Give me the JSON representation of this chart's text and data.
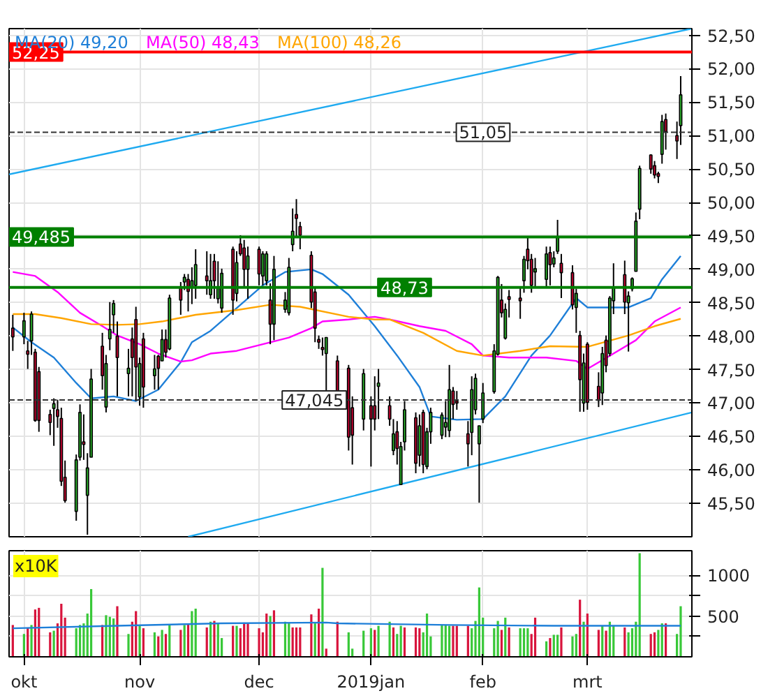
{
  "chart_data": [
    {
      "type": "candlestick",
      "x": [
        "2018-09-28",
        "2018-10-01",
        "2018-10-02",
        "2018-10-03",
        "2018-10-04",
        "2018-10-05",
        "2018-10-08",
        "2018-10-09",
        "2018-10-10",
        "2018-10-11",
        "2018-10-12",
        "2018-10-15",
        "2018-10-16",
        "2018-10-17",
        "2018-10-18",
        "2018-10-19",
        "2018-10-22",
        "2018-10-23",
        "2018-10-24",
        "2018-10-25",
        "2018-10-26",
        "2018-10-29",
        "2018-10-30",
        "2018-10-31",
        "2018-11-01",
        "2018-11-02",
        "2018-11-05",
        "2018-11-06",
        "2018-11-07",
        "2018-11-08",
        "2018-11-09",
        "2018-11-12",
        "2018-11-13",
        "2018-11-14",
        "2018-11-15",
        "2018-11-16",
        "2018-11-19",
        "2018-11-20",
        "2018-11-21",
        "2018-11-22",
        "2018-11-23",
        "2018-11-26",
        "2018-11-27",
        "2018-11-28",
        "2018-11-29",
        "2018-11-30",
        "2018-12-03",
        "2018-12-04",
        "2018-12-05",
        "2018-12-06",
        "2018-12-07",
        "2018-12-10",
        "2018-12-11",
        "2018-12-12",
        "2018-12-13",
        "2018-12-14",
        "2018-12-17",
        "2018-12-18",
        "2018-12-19",
        "2018-12-20",
        "2018-12-21",
        "2018-12-24",
        "2018-12-27",
        "2018-12-28",
        "2018-12-31",
        "2019-01-02",
        "2019-01-03",
        "2019-01-04",
        "2019-01-07",
        "2019-01-08",
        "2019-01-09",
        "2019-01-10",
        "2019-01-11",
        "2019-01-14",
        "2019-01-15",
        "2019-01-16",
        "2019-01-17",
        "2019-01-18",
        "2019-01-21",
        "2019-01-22",
        "2019-01-23",
        "2019-01-24",
        "2019-01-25",
        "2019-01-28",
        "2019-01-29",
        "2019-01-30",
        "2019-01-31",
        "2019-02-01",
        "2019-02-04",
        "2019-02-05",
        "2019-02-06",
        "2019-02-07",
        "2019-02-08",
        "2019-02-11",
        "2019-02-12",
        "2019-02-13",
        "2019-02-14",
        "2019-02-15",
        "2019-02-18",
        "2019-02-19",
        "2019-02-20",
        "2019-02-21",
        "2019-02-22",
        "2019-02-25",
        "2019-02-26",
        "2019-02-27",
        "2019-02-28",
        "2019-03-01",
        "2019-03-04",
        "2019-03-05",
        "2019-03-06",
        "2019-03-07",
        "2019-03-08",
        "2019-03-11",
        "2019-03-12",
        "2019-03-13",
        "2019-03-14",
        "2019-03-15",
        "2019-03-18",
        "2019-03-19",
        "2019-03-20",
        "2019-03-21",
        "2019-03-22",
        "2019-03-25",
        "2019-03-26"
      ],
      "ohlc": [
        [
          48.12,
          48.32,
          47.78,
          47.99
        ],
        [
          47.99,
          48.35,
          47.88,
          48.23
        ],
        [
          47.78,
          47.93,
          47.51,
          47.73
        ],
        [
          47.93,
          48.37,
          47.72,
          48.33
        ],
        [
          47.76,
          47.81,
          46.72,
          46.74
        ],
        [
          47.47,
          47.54,
          46.57,
          46.74
        ],
        [
          46.83,
          46.9,
          46.52,
          46.71
        ],
        [
          46.92,
          47.07,
          46.36,
          46.99
        ],
        [
          46.9,
          47.05,
          46.63,
          46.8
        ],
        [
          46.77,
          46.93,
          45.76,
          45.83
        ],
        [
          45.89,
          46.14,
          45.51,
          45.54
        ],
        [
          45.38,
          46.23,
          45.24,
          46.15
        ],
        [
          46.19,
          46.98,
          46.14,
          46.86
        ],
        [
          46.42,
          46.83,
          46.15,
          46.38
        ],
        [
          45.62,
          46.25,
          45.03,
          46.03
        ],
        [
          46.19,
          47.51,
          46.19,
          47.36
        ],
        [
          47.85,
          48.05,
          47.2,
          47.41
        ],
        [
          46.94,
          47.72,
          46.86,
          47.59
        ],
        [
          47.96,
          48.51,
          47.79,
          48.1
        ],
        [
          48.32,
          48.54,
          48.05,
          48.49
        ],
        [
          48.0,
          48.22,
          47.1,
          47.68
        ],
        [
          47.44,
          47.81,
          47.1,
          47.52
        ],
        [
          47.96,
          48.13,
          47.1,
          47.68
        ],
        [
          48.25,
          48.44,
          47.03,
          47.54
        ],
        [
          47.09,
          47.68,
          46.96,
          47.59
        ],
        [
          47.96,
          48.05,
          46.93,
          47.24
        ],
        [
          47.41,
          47.72,
          47.2,
          47.51
        ],
        [
          47.7,
          47.72,
          47.2,
          47.52
        ],
        [
          47.63,
          48.1,
          47.63,
          47.95
        ],
        [
          47.95,
          48.1,
          47.68,
          47.76
        ],
        [
          47.81,
          48.62,
          47.79,
          48.57
        ],
        [
          48.74,
          48.81,
          48.32,
          48.54
        ],
        [
          48.81,
          48.93,
          48.69,
          48.88
        ],
        [
          48.85,
          48.93,
          48.37,
          48.67
        ],
        [
          48.74,
          49.03,
          48.48,
          48.83
        ],
        [
          48.76,
          49.3,
          48.56,
          49.07
        ],
        [
          48.9,
          49.27,
          48.62,
          48.83
        ],
        [
          48.62,
          49.23,
          48.56,
          48.83
        ],
        [
          49.12,
          49.23,
          48.56,
          48.83
        ],
        [
          48.56,
          49.12,
          48.49,
          48.73
        ],
        [
          48.42,
          49.01,
          48.35,
          48.94
        ],
        [
          49.3,
          49.34,
          48.32,
          48.54
        ],
        [
          48.64,
          49.27,
          48.52,
          49.1
        ],
        [
          49.38,
          49.51,
          49.2,
          49.23
        ],
        [
          49.32,
          49.44,
          48.73,
          49.0
        ],
        [
          49.0,
          49.34,
          48.56,
          49.2
        ],
        [
          49.3,
          49.34,
          48.76,
          48.93
        ],
        [
          48.9,
          49.27,
          48.76,
          49.23
        ],
        [
          48.83,
          49.27,
          48.76,
          49.23
        ],
        [
          48.54,
          48.79,
          47.88,
          48.18
        ],
        [
          48.18,
          49.2,
          47.94,
          49.0
        ],
        [
          48.4,
          48.66,
          48.35,
          48.54
        ],
        [
          48.35,
          49.17,
          48.31,
          49.03
        ],
        [
          49.37,
          49.91,
          49.27,
          49.57
        ],
        [
          49.82,
          50.05,
          49.47,
          49.76
        ],
        [
          49.64,
          49.71,
          49.3,
          49.51
        ],
        [
          49.21,
          49.27,
          48.42,
          48.51
        ],
        [
          48.66,
          48.73,
          47.91,
          48.12
        ],
        [
          47.95,
          48.01,
          47.81,
          47.91
        ],
        [
          47.83,
          47.98,
          47.71,
          47.8
        ],
        [
          47.74,
          47.98,
          46.9,
          47.98
        ],
        [
          47.63,
          47.71,
          46.9,
          46.93
        ],
        [
          47.52,
          47.57,
          46.29,
          46.49
        ],
        [
          46.93,
          47.1,
          46.08,
          46.52
        ],
        [
          46.76,
          47.51,
          46.59,
          47.44
        ],
        [
          46.96,
          47.1,
          46.05,
          46.76
        ],
        [
          46.96,
          47.4,
          46.59,
          46.76
        ],
        [
          47.25,
          47.51,
          46.76,
          47.3
        ],
        [
          46.96,
          47.1,
          46.66,
          46.76
        ],
        [
          46.29,
          46.76,
          46.22,
          46.54
        ],
        [
          46.57,
          46.73,
          46.08,
          46.32
        ],
        [
          45.78,
          46.42,
          45.78,
          46.35
        ],
        [
          46.42,
          47.03,
          46.29,
          46.9
        ],
        [
          46.78,
          46.86,
          45.95,
          46.1
        ],
        [
          46.22,
          46.83,
          46.05,
          46.66
        ],
        [
          46.86,
          46.9,
          45.95,
          46.08
        ],
        [
          46.05,
          46.63,
          46.01,
          46.57
        ],
        [
          46.57,
          46.93,
          46.39,
          46.86
        ],
        [
          46.52,
          46.86,
          46.46,
          46.82
        ],
        [
          46.64,
          47.03,
          46.49,
          46.71
        ],
        [
          46.59,
          47.57,
          46.49,
          47.2
        ],
        [
          47.18,
          47.24,
          46.76,
          46.98
        ],
        [
          47.03,
          47.18,
          46.9,
          47.0
        ],
        [
          46.54,
          46.73,
          46.05,
          46.39
        ],
        [
          46.56,
          47.4,
          46.22,
          47.2
        ],
        [
          46.9,
          47.44,
          46.83,
          47.37
        ],
        [
          46.39,
          46.66,
          45.51,
          46.66
        ],
        [
          46.76,
          47.3,
          46.7,
          47.15
        ],
        [
          47.17,
          47.88,
          47.14,
          47.78
        ],
        [
          47.73,
          48.9,
          47.71,
          48.88
        ],
        [
          48.54,
          48.78,
          48.28,
          48.35
        ],
        [
          47.97,
          48.49,
          47.95,
          48.4
        ],
        [
          48.59,
          48.69,
          48.28,
          48.55
        ],
        [
          48.57,
          48.73,
          48.26,
          48.53
        ],
        [
          48.83,
          49.2,
          48.65,
          49.15
        ],
        [
          49.3,
          49.47,
          49.0,
          49.13
        ],
        [
          49.15,
          49.23,
          48.65,
          48.76
        ],
        [
          48.96,
          49.17,
          48.73,
          49.01
        ],
        [
          48.85,
          49.34,
          48.73,
          49.23
        ],
        [
          49.25,
          49.34,
          48.76,
          49.07
        ],
        [
          49.08,
          49.27,
          49.03,
          49.17
        ],
        [
          49.27,
          49.74,
          49.23,
          49.49
        ],
        [
          49.09,
          49.23,
          48.57,
          48.95
        ],
        [
          48.95,
          49.06,
          48.4,
          48.47
        ],
        [
          48.43,
          48.71,
          48.05,
          48.64
        ],
        [
          48.01,
          48.08,
          46.87,
          47.35
        ],
        [
          47.0,
          47.74,
          46.87,
          47.6
        ],
        [
          47.88,
          47.91,
          46.9,
          47.01
        ],
        [
          47.25,
          47.46,
          46.94,
          47.04
        ],
        [
          47.15,
          47.84,
          46.97,
          47.74
        ],
        [
          47.94,
          48.01,
          47.46,
          47.56
        ],
        [
          47.74,
          48.6,
          47.7,
          48.57
        ],
        [
          48.53,
          49.09,
          48.33,
          48.74
        ],
        [
          48.92,
          49.13,
          48.33,
          48.51
        ],
        [
          48.5,
          48.67,
          47.77,
          48.6
        ],
        [
          48.71,
          48.88,
          48.67,
          48.86
        ],
        [
          48.97,
          49.85,
          48.97,
          49.72
        ],
        [
          49.9,
          50.55,
          49.75,
          50.51
        ],
        [
          50.71,
          50.72,
          50.43,
          50.5
        ],
        [
          50.55,
          50.62,
          50.36,
          50.41
        ],
        [
          50.43,
          50.46,
          50.29,
          50.39
        ],
        [
          50.72,
          51.31,
          50.58,
          51.21
        ],
        [
          51.24,
          51.33,
          50.79,
          51.06
        ],
        [
          51.0,
          51.21,
          50.65,
          50.92
        ],
        [
          51.15,
          51.89,
          50.86,
          51.61
        ]
      ],
      "series": [
        {
          "type": "line",
          "name": "MA(20) 49,20",
          "color": "#1e7fd8",
          "x": [
            "2018-09-28",
            "2018-10-03",
            "2018-10-09",
            "2018-10-15",
            "2018-10-19",
            "2018-10-25",
            "2018-10-31",
            "2018-11-06",
            "2018-11-12",
            "2018-11-15",
            "2018-11-20",
            "2018-11-27",
            "2018-12-04",
            "2018-12-10",
            "2018-12-17",
            "2018-12-20",
            "2018-12-27",
            "2019-01-03",
            "2019-01-09",
            "2019-01-15",
            "2019-01-18",
            "2019-01-25",
            "2019-02-01",
            "2019-02-07",
            "2019-02-14",
            "2019-02-19",
            "2019-02-26",
            "2019-03-01",
            "2019-03-07",
            "2019-03-12",
            "2019-03-18",
            "2019-03-21",
            "2019-03-26"
          ],
          "values": [
            48.13,
            47.91,
            47.68,
            47.3,
            47.07,
            47.1,
            47.03,
            47.2,
            47.61,
            47.91,
            48.08,
            48.42,
            48.76,
            48.96,
            49.0,
            48.93,
            48.62,
            48.15,
            47.71,
            47.24,
            46.8,
            46.75,
            46.76,
            47.1,
            47.71,
            48.01,
            48.57,
            48.43,
            48.43,
            48.43,
            48.57,
            48.85,
            49.2
          ]
        },
        {
          "type": "line",
          "name": "MA(50) 48,43",
          "color": "#ff00ff",
          "x": [
            "2018-09-28",
            "2018-10-04",
            "2018-10-10",
            "2018-10-16",
            "2018-10-22",
            "2018-10-26",
            "2018-11-01",
            "2018-11-06",
            "2018-11-12",
            "2018-11-15",
            "2018-11-20",
            "2018-11-27",
            "2018-12-04",
            "2018-12-11",
            "2018-12-17",
            "2018-12-20",
            "2018-12-27",
            "2019-01-03",
            "2019-01-07",
            "2019-01-15",
            "2019-01-22",
            "2019-01-29",
            "2019-02-01",
            "2019-02-08",
            "2019-02-18",
            "2019-02-26",
            "2019-03-01",
            "2019-03-08",
            "2019-03-14",
            "2019-03-19",
            "2019-03-26"
          ],
          "values": [
            48.96,
            48.9,
            48.66,
            48.35,
            48.15,
            48.01,
            47.88,
            47.74,
            47.62,
            47.64,
            47.74,
            47.78,
            47.88,
            47.98,
            48.12,
            48.22,
            48.25,
            48.29,
            48.25,
            48.15,
            48.08,
            47.88,
            47.71,
            47.68,
            47.68,
            47.63,
            47.51,
            47.74,
            47.94,
            48.22,
            48.43
          ]
        },
        {
          "type": "line",
          "name": "MA(100) 48,26",
          "color": "#ffa500",
          "x": [
            "2018-09-28",
            "2018-10-04",
            "2018-10-11",
            "2018-10-19",
            "2018-10-26",
            "2018-11-01",
            "2018-11-07",
            "2018-11-16",
            "2018-11-27",
            "2018-12-06",
            "2018-12-14",
            "2018-12-27",
            "2019-01-03",
            "2019-01-07",
            "2019-01-16",
            "2019-01-25",
            "2019-02-01",
            "2019-02-11",
            "2019-02-19",
            "2019-03-01",
            "2019-03-12",
            "2019-03-19",
            "2019-03-26"
          ],
          "values": [
            48.33,
            48.33,
            48.27,
            48.18,
            48.17,
            48.18,
            48.22,
            48.32,
            48.39,
            48.47,
            48.44,
            48.29,
            48.25,
            48.25,
            48.05,
            47.78,
            47.71,
            47.78,
            47.85,
            47.84,
            48.01,
            48.15,
            48.26
          ]
        },
        {
          "type": "line",
          "color": "#1eaaf0",
          "x": [
            "2018-09-27",
            "2019-03-29"
          ],
          "values": [
            50.42,
            52.6
          ]
        },
        {
          "type": "line",
          "color": "#1eaaf0",
          "x": [
            "2018-11-14",
            "2019-03-29"
          ],
          "values": [
            45.0,
            46.86
          ]
        }
      ],
      "ref_lines": [
        {
          "axis": "y",
          "value": 52.25,
          "label": "52,25",
          "color": "#ff0000",
          "line_style": "solid"
        },
        {
          "axis": "y",
          "value": 49.485,
          "label": "49,485",
          "color": "#008000",
          "line_style": "solid"
        },
        {
          "axis": "y",
          "value": 48.73,
          "label": "48,73",
          "color": "#008000",
          "line_style": "solid"
        },
        {
          "axis": "y",
          "value": 51.05,
          "label": "51,05",
          "color": "#333333",
          "line_style": "dashed"
        },
        {
          "axis": "y",
          "value": 47.045,
          "label": "47,045",
          "color": "#333333",
          "line_style": "dashed"
        }
      ],
      "xlim": [
        "2018-09-27",
        "2019-03-29"
      ],
      "ylim": [
        45.0,
        52.6
      ],
      "xticks": [
        {
          "value": "2018-10-01",
          "label": null
        },
        {
          "value": "2018-11-01",
          "label": null
        },
        {
          "value": "2018-12-03",
          "label": null
        },
        {
          "value": "2019-01-02",
          "label": null
        },
        {
          "value": "2019-02-01",
          "label": null
        },
        {
          "value": "2019-03-01",
          "label": null
        }
      ],
      "yticks": [
        {
          "value": 45.5,
          "label": "45,50"
        },
        {
          "value": 46.0,
          "label": "46,00"
        },
        {
          "value": 46.5,
          "label": "46,50"
        },
        {
          "value": 47.0,
          "label": "47,00"
        },
        {
          "value": 47.5,
          "label": "47,50"
        },
        {
          "value": 48.0,
          "label": "48,00"
        },
        {
          "value": 48.5,
          "label": "48,50"
        },
        {
          "value": 49.0,
          "label": "49,00"
        },
        {
          "value": 49.5,
          "label": "49,50"
        },
        {
          "value": 50.0,
          "label": "50,00"
        },
        {
          "value": 50.5,
          "label": "50,50"
        },
        {
          "value": 51.0,
          "label": "51,00"
        },
        {
          "value": 51.5,
          "label": "51,50"
        },
        {
          "value": 52.0,
          "label": "52,00"
        },
        {
          "value": 52.5,
          "label": "52,50"
        }
      ],
      "tick_labels": "y",
      "grid": true,
      "legend": "top left"
    },
    {
      "type": "bar",
      "x": [
        "2018-09-28",
        "2018-10-01",
        "2018-10-02",
        "2018-10-03",
        "2018-10-04",
        "2018-10-05",
        "2018-10-08",
        "2018-10-09",
        "2018-10-10",
        "2018-10-11",
        "2018-10-12",
        "2018-10-15",
        "2018-10-16",
        "2018-10-17",
        "2018-10-18",
        "2018-10-19",
        "2018-10-22",
        "2018-10-23",
        "2018-10-24",
        "2018-10-25",
        "2018-10-26",
        "2018-10-29",
        "2018-10-30",
        "2018-10-31",
        "2018-11-01",
        "2018-11-02",
        "2018-11-05",
        "2018-11-06",
        "2018-11-07",
        "2018-11-08",
        "2018-11-09",
        "2018-11-12",
        "2018-11-13",
        "2018-11-14",
        "2018-11-15",
        "2018-11-16",
        "2018-11-19",
        "2018-11-20",
        "2018-11-21",
        "2018-11-22",
        "2018-11-23",
        "2018-11-26",
        "2018-11-27",
        "2018-11-28",
        "2018-11-29",
        "2018-11-30",
        "2018-12-03",
        "2018-12-04",
        "2018-12-05",
        "2018-12-06",
        "2018-12-07",
        "2018-12-10",
        "2018-12-11",
        "2018-12-12",
        "2018-12-13",
        "2018-12-14",
        "2018-12-17",
        "2018-12-18",
        "2018-12-19",
        "2018-12-20",
        "2018-12-21",
        "2018-12-24",
        "2018-12-27",
        "2018-12-28",
        "2018-12-31",
        "2019-01-02",
        "2019-01-03",
        "2019-01-04",
        "2019-01-07",
        "2019-01-08",
        "2019-01-09",
        "2019-01-10",
        "2019-01-11",
        "2019-01-14",
        "2019-01-15",
        "2019-01-16",
        "2019-01-17",
        "2019-01-18",
        "2019-01-21",
        "2019-01-22",
        "2019-01-23",
        "2019-01-24",
        "2019-01-25",
        "2019-01-28",
        "2019-01-29",
        "2019-01-30",
        "2019-01-31",
        "2019-02-01",
        "2019-02-04",
        "2019-02-05",
        "2019-02-06",
        "2019-02-07",
        "2019-02-08",
        "2019-02-11",
        "2019-02-12",
        "2019-02-13",
        "2019-02-14",
        "2019-02-15",
        "2019-02-18",
        "2019-02-19",
        "2019-02-20",
        "2019-02-21",
        "2019-02-22",
        "2019-02-25",
        "2019-02-26",
        "2019-02-27",
        "2019-02-28",
        "2019-03-01",
        "2019-03-04",
        "2019-03-05",
        "2019-03-06",
        "2019-03-07",
        "2019-03-08",
        "2019-03-11",
        "2019-03-12",
        "2019-03-13",
        "2019-03-14",
        "2019-03-15",
        "2019-03-18",
        "2019-03-19",
        "2019-03-20",
        "2019-03-21",
        "2019-03-22",
        "2019-03-25",
        "2019-03-26"
      ],
      "series": [
        {
          "type": "bar",
          "values": [
            390,
            280,
            350,
            390,
            580,
            600,
            300,
            320,
            410,
            650,
            480,
            350,
            390,
            410,
            530,
            830,
            390,
            510,
            490,
            470,
            620,
            280,
            430,
            560,
            380,
            350,
            300,
            250,
            330,
            280,
            390,
            330,
            390,
            410,
            560,
            590,
            360,
            430,
            440,
            410,
            230,
            380,
            380,
            350,
            420,
            410,
            350,
            300,
            530,
            500,
            570,
            430,
            410,
            360,
            360,
            360,
            520,
            410,
            590,
            1090,
            100,
            430,
            300,
            100,
            320,
            350,
            330,
            380,
            430,
            360,
            280,
            380,
            360,
            360,
            350,
            300,
            530,
            250,
            390,
            390,
            380,
            380,
            380,
            380,
            350,
            440,
            850,
            480,
            350,
            440,
            330,
            480,
            360,
            350,
            350,
            350,
            280,
            480,
            190,
            230,
            270,
            270,
            360,
            250,
            280,
            700,
            430,
            530,
            330,
            380,
            320,
            430,
            380,
            360,
            300,
            350,
            430,
            1270,
            280,
            300,
            330,
            410,
            410,
            280,
            620
          ],
          "colors": [
            "#d8143c",
            "#38c838",
            "#d8143c",
            "#38c838",
            "#d8143c",
            "#d8143c",
            "#d8143c",
            "#38c838",
            "#d8143c",
            "#d8143c",
            "#d8143c",
            "#38c838",
            "#38c838",
            "#38c838",
            "#38c838",
            "#38c838",
            "#d8143c",
            "#38c838",
            "#38c838",
            "#38c838",
            "#d8143c",
            "#38c838",
            "#d8143c",
            "#d8143c",
            "#38c838",
            "#d8143c",
            "#38c838",
            "#d8143c",
            "#38c838",
            "#d8143c",
            "#38c838",
            "#d8143c",
            "#38c838",
            "#d8143c",
            "#38c838",
            "#38c838",
            "#d8143c",
            "#38c838",
            "#d8143c",
            "#38c838",
            "#38c838",
            "#d8143c",
            "#38c838",
            "#d8143c",
            "#d8143c",
            "#d8143c",
            "#d8143c",
            "#d8143c",
            "#d8143c",
            "#38c838",
            "#d8143c",
            "#38c838",
            "#38c838",
            "#d8143c",
            "#d8143c",
            "#d8143c",
            "#d8143c",
            "#38c838",
            "#d8143c",
            "#38c838",
            "#d8143c",
            "#d8143c",
            "#38c838",
            "#38c838",
            "#38c838",
            "#38c838",
            "#d8143c",
            "#38c838",
            "#38c838",
            "#d8143c",
            "#38c838",
            "#38c838",
            "#d8143c",
            "#d8143c",
            "#d8143c",
            "#38c838",
            "#38c838",
            "#38c838",
            "#38c838",
            "#38c838",
            "#38c838",
            "#d8143c",
            "#d8143c",
            "#d8143c",
            "#38c838",
            "#38c838",
            "#38c838",
            "#38c838",
            "#38c838",
            "#38c838",
            "#d8143c",
            "#38c838",
            "#d8143c",
            "#38c838",
            "#38c838",
            "#38c838",
            "#d8143c",
            "#d8143c",
            "#38c838",
            "#d8143c",
            "#38c838",
            "#38c838",
            "#d8143c",
            "#38c838",
            "#38c838",
            "#d8143c",
            "#38c838",
            "#d8143c",
            "#d8143c",
            "#38c838",
            "#d8143c",
            "#38c838",
            "#38c838",
            "#d8143c",
            "#38c838",
            "#38c838",
            "#38c838",
            "#38c838",
            "#d8143c",
            "#d8143c",
            "#38c838",
            "#38c838",
            "#d8143c",
            "#38c838",
            "#38c838"
          ]
        },
        {
          "type": "line",
          "color": "#1e7fd8",
          "x": [
            "2018-09-28",
            "2018-10-26",
            "2018-11-23",
            "2018-12-21",
            "2018-12-24",
            "2019-01-23",
            "2019-02-20",
            "2019-03-26"
          ],
          "values": [
            350,
            380,
            410,
            420,
            410,
            390,
            380,
            380
          ]
        }
      ],
      "annotations": [
        "x10K"
      ],
      "xlim": [
        "2018-09-27",
        "2019-03-29"
      ],
      "ylim": [
        0,
        1300
      ],
      "xticks": [
        {
          "value": "2018-10-01",
          "label": "okt"
        },
        {
          "value": "2018-11-01",
          "label": "nov"
        },
        {
          "value": "2018-12-03",
          "label": "dec"
        },
        {
          "value": "2019-01-02",
          "label": "2019jan"
        },
        {
          "value": "2019-02-01",
          "label": "feb"
        },
        {
          "value": "2019-03-01",
          "label": "mrt"
        }
      ],
      "yticks": [
        {
          "value": 250,
          "label": null
        },
        500,
        {
          "value": 750,
          "label": null
        },
        1000
      ],
      "grid": true
    }
  ]
}
